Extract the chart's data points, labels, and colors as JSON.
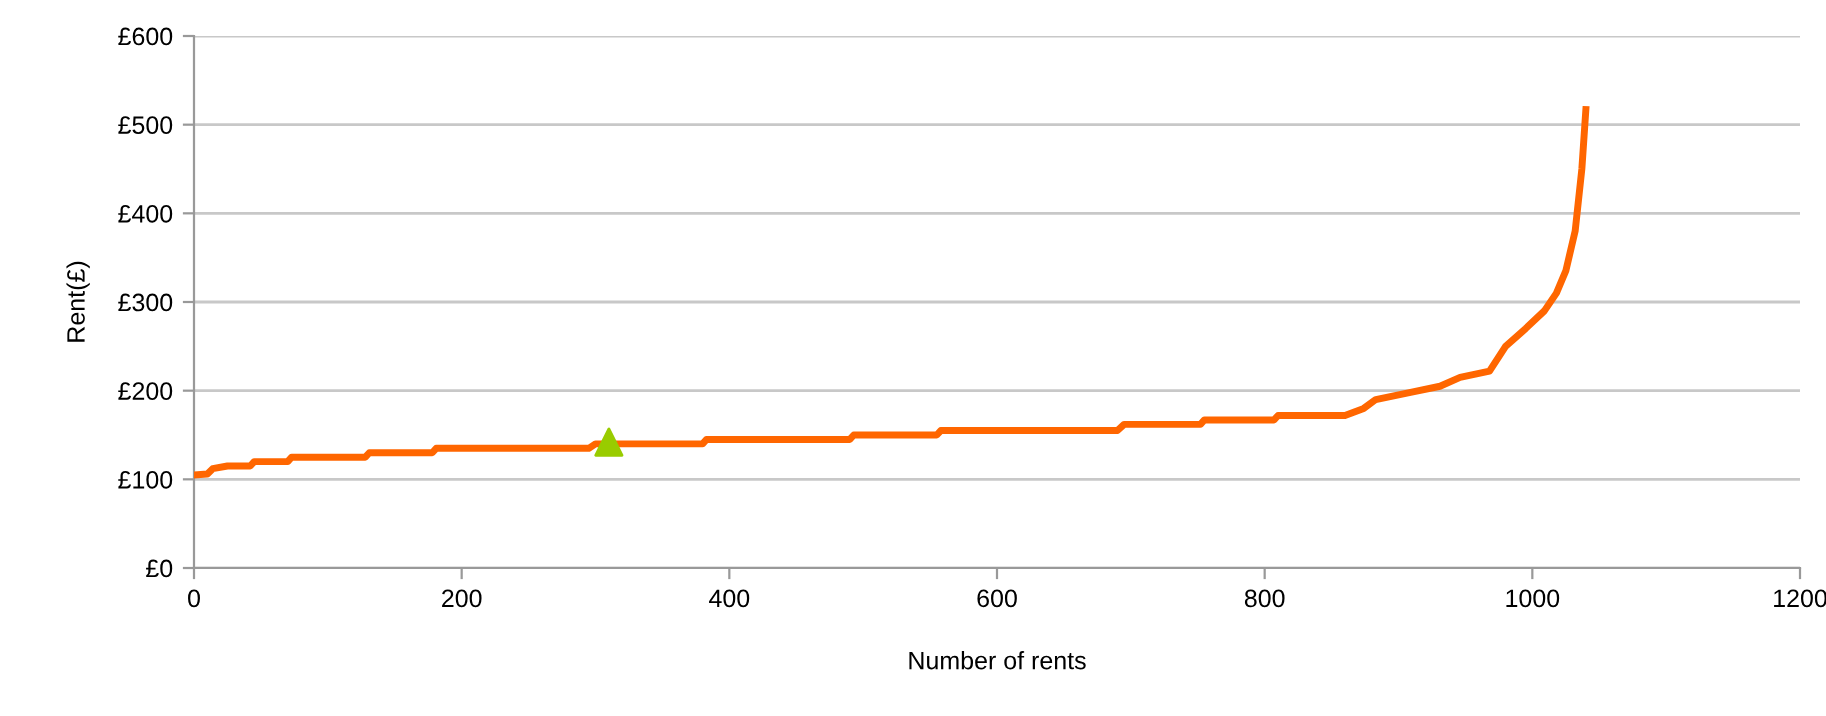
{
  "chart_data": {
    "type": "line",
    "xlabel": "Number of rents",
    "ylabel": "Rent(£)",
    "xlim": [
      0,
      1200
    ],
    "xticks": [
      0,
      200,
      400,
      600,
      800,
      1000,
      1200
    ],
    "ylim": [
      0,
      600
    ],
    "yticks": [
      {
        "value": 0,
        "label": "£0"
      },
      {
        "value": 100,
        "label": "£100"
      },
      {
        "value": 200,
        "label": "£200"
      },
      {
        "value": 300,
        "label": "£300"
      },
      {
        "value": 400,
        "label": "£400"
      },
      {
        "value": 500,
        "label": "£500"
      },
      {
        "value": 600,
        "label": "£600"
      }
    ],
    "grid": "y",
    "legend": false,
    "series": [
      {
        "color": "#ff6600",
        "marker": "none",
        "line_style": "solid",
        "x": [
          0,
          10,
          14,
          25,
          42,
          45,
          70,
          73,
          128,
          131,
          178,
          181,
          295,
          300,
          380,
          383,
          490,
          493,
          555,
          558,
          690,
          695,
          752,
          755,
          807,
          810,
          860,
          874,
          883,
          909,
          931,
          946,
          968,
          980,
          995,
          1009,
          1018,
          1025,
          1032,
          1037,
          1040
        ],
        "values": [
          105,
          106,
          112,
          115,
          115,
          120,
          120,
          125,
          125,
          130,
          130,
          135,
          135,
          140,
          140,
          145,
          145,
          150,
          150,
          155,
          155,
          162,
          162,
          167,
          167,
          172,
          172,
          180,
          190,
          198,
          205,
          215,
          222,
          250,
          270,
          290,
          310,
          335,
          380,
          450,
          517
        ]
      },
      {
        "type": "scatter",
        "color": "#99cc00",
        "marker": "triangle",
        "x": [
          310
        ],
        "values": [
          142
        ]
      }
    ]
  }
}
